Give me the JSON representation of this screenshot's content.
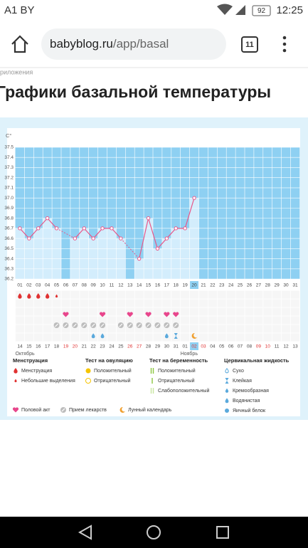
{
  "status_bar": {
    "carrier": "A1 BY",
    "battery": "92",
    "time": "12:25"
  },
  "browser": {
    "url_host": "babyblog.ru",
    "url_path": "/app/basal",
    "tab_count": "11"
  },
  "breadcrumb": "риложения",
  "page_title": "Графики базальной температуры",
  "chart_data": {
    "type": "line",
    "y_unit": "C°",
    "categories": [
      "01",
      "02",
      "03",
      "04",
      "05",
      "06",
      "07",
      "08",
      "09",
      "10",
      "11",
      "12",
      "13",
      "14",
      "15",
      "16",
      "17",
      "18",
      "19",
      "20",
      "21",
      "22",
      "23",
      "24",
      "25",
      "26",
      "27",
      "28",
      "29",
      "30",
      "31"
    ],
    "values": [
      36.7,
      36.6,
      36.7,
      36.8,
      36.7,
      null,
      36.6,
      36.7,
      36.6,
      36.7,
      36.7,
      36.6,
      null,
      36.4,
      36.8,
      36.5,
      36.6,
      36.7,
      36.7,
      37.0,
      null,
      null,
      null,
      null,
      null,
      null,
      null,
      null,
      null,
      null,
      null
    ],
    "ylim": [
      36.2,
      37.5
    ],
    "yticks": [
      36.2,
      36.3,
      36.4,
      36.5,
      36.6,
      36.7,
      36.8,
      36.9,
      {
        "value": 37,
        "label": "37.0"
      },
      37.1,
      37.2,
      37.3,
      37.4,
      37.5
    ],
    "color": "#e8578a",
    "grid": true,
    "today_index": 19,
    "cycle_dates": [
      "14",
      "15",
      "16",
      "17",
      "18",
      "19",
      "20",
      "21",
      "22",
      "23",
      "24",
      "25",
      "26",
      "27",
      "28",
      "29",
      "30",
      "31",
      "01",
      "02",
      "03",
      "04",
      "05",
      "06",
      "07",
      "08",
      "09",
      "10",
      "11",
      "12",
      "13"
    ],
    "weekend_indices": [
      5,
      6,
      12,
      13,
      19,
      20,
      26,
      27
    ],
    "months": [
      {
        "label": "Октябрь",
        "index": 0
      },
      {
        "label": "Ноябрь",
        "index": 18
      }
    ],
    "markers": {
      "menstruation": [
        0,
        1,
        2,
        3
      ],
      "light_discharge": [
        4
      ],
      "intercourse": [
        5,
        9,
        12,
        14,
        16,
        17
      ],
      "medication": [
        4,
        5,
        6,
        7,
        8,
        9,
        11,
        12,
        13,
        14,
        15,
        16,
        17
      ],
      "watery": [
        8,
        9,
        16
      ],
      "sticky": [
        17
      ],
      "lunar": [
        19
      ]
    }
  },
  "legend": {
    "groups": [
      {
        "title": "Менструация",
        "items": [
          "Менструация",
          "Небольшие выделения"
        ]
      },
      {
        "title": "Тест на овуляцию",
        "items": [
          "Положительный",
          "Отрицательный"
        ]
      },
      {
        "title": "Тест на беременность",
        "items": [
          "Положительный",
          "Отрицательный",
          "Слабоположительный"
        ]
      },
      {
        "title": "Цервикальная жидкость",
        "items": [
          "Сухо",
          "Клейкая",
          "Кремообразная",
          "Водянистая",
          "Яичный белок"
        ]
      }
    ],
    "extra": [
      "Половой акт",
      "Прием лекарств",
      "Лунный календарь"
    ]
  }
}
